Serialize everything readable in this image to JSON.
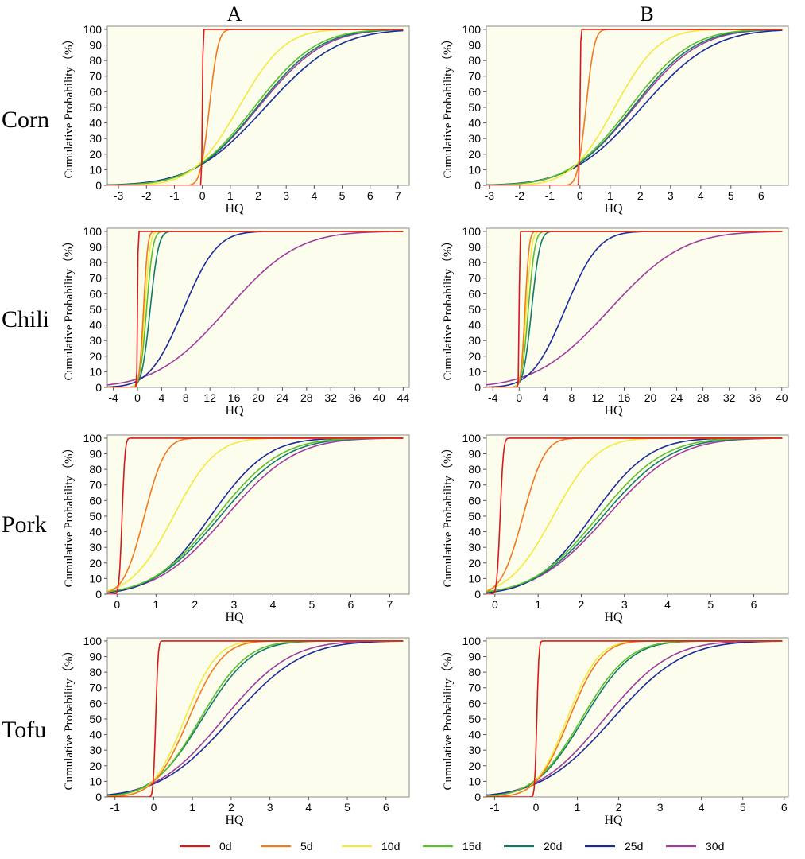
{
  "column_headers": [
    "A",
    "B"
  ],
  "row_labels": [
    "Corn",
    "Chili",
    "Pork",
    "Tofu"
  ],
  "legend": [
    {
      "label": "0d",
      "color": "#d91a1a"
    },
    {
      "label": "5d",
      "color": "#f07a1e"
    },
    {
      "label": "10d",
      "color": "#f3ea3c"
    },
    {
      "label": "15d",
      "color": "#5bbf2a"
    },
    {
      "label": "20d",
      "color": "#127a6a"
    },
    {
      "label": "25d",
      "color": "#1b2b9a"
    },
    {
      "label": "30d",
      "color": "#a03c9e"
    }
  ],
  "panel_background": "#fdfdee",
  "chart_data": [
    {
      "id": "corn-A",
      "type": "line",
      "title": "",
      "xlabel": "HQ",
      "ylabel": "Cumulative Probability（%）",
      "xlim": [
        -3.4,
        7.4
      ],
      "ylim": [
        0,
        102
      ],
      "xticks": [
        -3,
        -2,
        -1,
        0,
        1,
        2,
        3,
        4,
        5,
        6,
        7
      ],
      "yticks": [
        0,
        10,
        20,
        30,
        40,
        50,
        60,
        70,
        80,
        90,
        100
      ],
      "series": [
        {
          "name": "0d",
          "mu": 0.0,
          "sigma": 0.02
        },
        {
          "name": "5d",
          "mu": 0.25,
          "sigma": 0.25
        },
        {
          "name": "10d",
          "mu": 1.3,
          "sigma": 1.3
        },
        {
          "name": "15d",
          "mu": 1.85,
          "sigma": 1.75
        },
        {
          "name": "20d",
          "mu": 1.95,
          "sigma": 1.8
        },
        {
          "name": "25d",
          "mu": 2.25,
          "sigma": 2.05
        },
        {
          "name": "30d",
          "mu": 2.0,
          "sigma": 1.85
        }
      ]
    },
    {
      "id": "corn-B",
      "type": "line",
      "title": "",
      "xlabel": "HQ",
      "ylabel": "Cumulative Probability（%）",
      "xlim": [
        -3.1,
        6.9
      ],
      "ylim": [
        0,
        102
      ],
      "xticks": [
        -3,
        -2,
        -1,
        0,
        1,
        2,
        3,
        4,
        5,
        6
      ],
      "yticks": [
        0,
        10,
        20,
        30,
        40,
        50,
        60,
        70,
        80,
        90,
        100
      ],
      "series": [
        {
          "name": "0d",
          "mu": 0.0,
          "sigma": 0.02
        },
        {
          "name": "5d",
          "mu": 0.2,
          "sigma": 0.22
        },
        {
          "name": "10d",
          "mu": 1.15,
          "sigma": 1.15
        },
        {
          "name": "15d",
          "mu": 1.65,
          "sigma": 1.6
        },
        {
          "name": "20d",
          "mu": 1.75,
          "sigma": 1.65
        },
        {
          "name": "25d",
          "mu": 2.05,
          "sigma": 1.85
        },
        {
          "name": "30d",
          "mu": 1.8,
          "sigma": 1.7
        }
      ]
    },
    {
      "id": "chili-A",
      "type": "line",
      "title": "",
      "xlabel": "HQ",
      "ylabel": "Cumulative Probability（%）",
      "xlim": [
        -5,
        45
      ],
      "ylim": [
        0,
        102
      ],
      "xticks": [
        -4,
        0,
        4,
        8,
        12,
        16,
        20,
        24,
        28,
        32,
        36,
        40,
        44
      ],
      "yticks": [
        0,
        10,
        20,
        30,
        40,
        50,
        60,
        70,
        80,
        90,
        100
      ],
      "series": [
        {
          "name": "0d",
          "mu": 0.0,
          "sigma": 0.08
        },
        {
          "name": "5d",
          "mu": 1.0,
          "sigma": 0.55
        },
        {
          "name": "10d",
          "mu": 1.2,
          "sigma": 0.7
        },
        {
          "name": "15d",
          "mu": 1.5,
          "sigma": 0.85
        },
        {
          "name": "20d",
          "mu": 2.1,
          "sigma": 1.1
        },
        {
          "name": "25d",
          "mu": 7.6,
          "sigma": 4.4
        },
        {
          "name": "30d",
          "mu": 14.8,
          "sigma": 9.2
        }
      ]
    },
    {
      "id": "chili-B",
      "type": "line",
      "title": "",
      "xlabel": "HQ",
      "ylabel": "Cumulative Probability（%）",
      "xlim": [
        -5,
        41
      ],
      "ylim": [
        0,
        102
      ],
      "xticks": [
        -4,
        0,
        4,
        8,
        12,
        16,
        20,
        24,
        28,
        32,
        36,
        40
      ],
      "yticks": [
        0,
        10,
        20,
        30,
        40,
        50,
        60,
        70,
        80,
        90,
        100
      ],
      "series": [
        {
          "name": "0d",
          "mu": 0.0,
          "sigma": 0.08
        },
        {
          "name": "5d",
          "mu": 0.9,
          "sigma": 0.5
        },
        {
          "name": "10d",
          "mu": 1.1,
          "sigma": 0.65
        },
        {
          "name": "15d",
          "mu": 1.4,
          "sigma": 0.8
        },
        {
          "name": "20d",
          "mu": 1.9,
          "sigma": 1.0
        },
        {
          "name": "25d",
          "mu": 7.0,
          "sigma": 4.0
        },
        {
          "name": "30d",
          "mu": 13.8,
          "sigma": 8.8
        }
      ]
    },
    {
      "id": "pork-A",
      "type": "line",
      "title": "",
      "xlabel": "HQ",
      "ylabel": "Cumulative Probability（%）",
      "xlim": [
        -0.25,
        7.5
      ],
      "ylim": [
        0,
        102
      ],
      "xticks": [
        0,
        1,
        2,
        3,
        4,
        5,
        6,
        7
      ],
      "yticks": [
        0,
        10,
        20,
        30,
        40,
        50,
        60,
        70,
        80,
        90,
        100
      ],
      "series": [
        {
          "name": "0d",
          "mu": 0.13,
          "sigma": 0.06
        },
        {
          "name": "5d",
          "mu": 0.7,
          "sigma": 0.42
        },
        {
          "name": "10d",
          "mu": 1.45,
          "sigma": 0.85
        },
        {
          "name": "15d",
          "mu": 2.55,
          "sigma": 1.3
        },
        {
          "name": "20d",
          "mu": 2.65,
          "sigma": 1.35
        },
        {
          "name": "25d",
          "mu": 2.4,
          "sigma": 1.15
        },
        {
          "name": "30d",
          "mu": 2.8,
          "sigma": 1.4
        }
      ]
    },
    {
      "id": "pork-B",
      "type": "line",
      "title": "",
      "xlabel": "HQ",
      "ylabel": "Cumulative Probability（%）",
      "xlim": [
        -0.2,
        6.8
      ],
      "ylim": [
        0,
        102
      ],
      "xticks": [
        0,
        1,
        2,
        3,
        4,
        5,
        6
      ],
      "yticks": [
        0,
        10,
        20,
        30,
        40,
        50,
        60,
        70,
        80,
        90,
        100
      ],
      "series": [
        {
          "name": "0d",
          "mu": 0.12,
          "sigma": 0.06
        },
        {
          "name": "5d",
          "mu": 0.65,
          "sigma": 0.4
        },
        {
          "name": "10d",
          "mu": 1.35,
          "sigma": 0.8
        },
        {
          "name": "15d",
          "mu": 2.4,
          "sigma": 1.2
        },
        {
          "name": "20d",
          "mu": 2.5,
          "sigma": 1.25
        },
        {
          "name": "25d",
          "mu": 2.25,
          "sigma": 1.05
        },
        {
          "name": "30d",
          "mu": 2.6,
          "sigma": 1.3
        }
      ]
    },
    {
      "id": "tofu-A",
      "type": "line",
      "title": "",
      "xlabel": "HQ",
      "ylabel": "Cumulative Probability（%）",
      "xlim": [
        -1.2,
        6.6
      ],
      "ylim": [
        0,
        102
      ],
      "xticks": [
        -1,
        0,
        1,
        2,
        3,
        4,
        5,
        6
      ],
      "yticks": [
        0,
        10,
        20,
        30,
        40,
        50,
        60,
        70,
        80,
        90,
        100
      ],
      "series": [
        {
          "name": "0d",
          "mu": 0.05,
          "sigma": 0.05
        },
        {
          "name": "5d",
          "mu": 0.9,
          "sigma": 0.7
        },
        {
          "name": "10d",
          "mu": 0.8,
          "sigma": 0.65
        },
        {
          "name": "15d",
          "mu": 1.2,
          "sigma": 0.95
        },
        {
          "name": "20d",
          "mu": 1.25,
          "sigma": 1.0
        },
        {
          "name": "25d",
          "mu": 2.0,
          "sigma": 1.45
        },
        {
          "name": "30d",
          "mu": 1.8,
          "sigma": 1.35
        }
      ]
    },
    {
      "id": "tofu-B",
      "type": "line",
      "title": "",
      "xlabel": "HQ",
      "ylabel": "Cumulative Probability（%）",
      "xlim": [
        -1.2,
        6.1
      ],
      "ylim": [
        0,
        102
      ],
      "xticks": [
        -1,
        0,
        1,
        2,
        3,
        4,
        5,
        6
      ],
      "yticks": [
        0,
        10,
        20,
        30,
        40,
        50,
        60,
        70,
        80,
        90,
        100
      ],
      "series": [
        {
          "name": "0d",
          "mu": 0.02,
          "sigma": 0.04
        },
        {
          "name": "5d",
          "mu": 0.8,
          "sigma": 0.62
        },
        {
          "name": "10d",
          "mu": 0.75,
          "sigma": 0.6
        },
        {
          "name": "15d",
          "mu": 1.1,
          "sigma": 0.9
        },
        {
          "name": "20d",
          "mu": 1.15,
          "sigma": 0.92
        },
        {
          "name": "25d",
          "mu": 1.85,
          "sigma": 1.35
        },
        {
          "name": "30d",
          "mu": 1.65,
          "sigma": 1.25
        }
      ]
    }
  ]
}
